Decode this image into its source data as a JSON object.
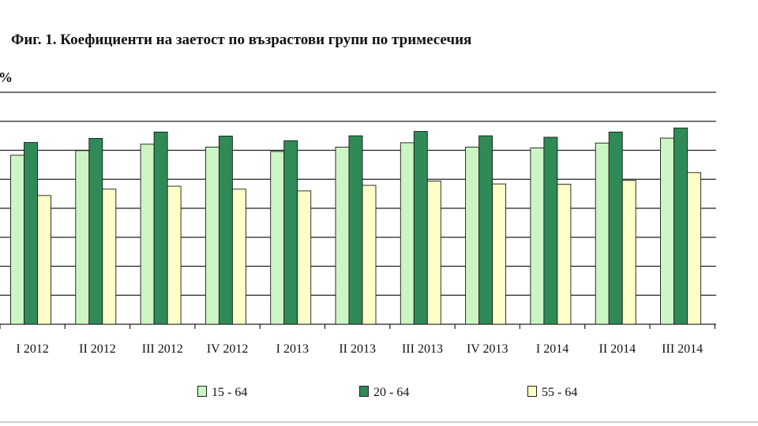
{
  "figure": {
    "title": "Фиг. 1. Коефициенти на заетост по възрастови групи по тримесечия",
    "unit_label": "%"
  },
  "chart_data": {
    "type": "bar",
    "title": "Фиг. 1. Коефициенти на заетост по възрастови групи по тримесечия",
    "ylabel": "%",
    "xlabel": "",
    "categories": [
      "I 2012",
      "II 2012",
      "III 2012",
      "IV 2012",
      "I 2013",
      "II 2013",
      "III 2013",
      "IV 2013",
      "I 2014",
      "II 2014",
      "III 2014"
    ],
    "series": [
      {
        "name": "15 - 64",
        "color": "#ccf5c4",
        "values": [
          58.3,
          59.9,
          62.1,
          61.1,
          59.6,
          61.1,
          62.6,
          61.1,
          60.8,
          62.5,
          64.2
        ]
      },
      {
        "name": "20 - 64",
        "color": "#2f8a57",
        "values": [
          62.7,
          64.1,
          66.3,
          64.9,
          63.3,
          65.0,
          66.5,
          65.0,
          64.5,
          66.3,
          67.7
        ]
      },
      {
        "name": "55 - 64",
        "color": "#ffffc8",
        "values": [
          44.4,
          46.6,
          47.6,
          46.6,
          46.0,
          47.9,
          49.4,
          48.4,
          48.3,
          49.6,
          52.3
        ]
      }
    ],
    "ylim": [
      0,
      80
    ],
    "grid": true,
    "legend": "bottom"
  }
}
